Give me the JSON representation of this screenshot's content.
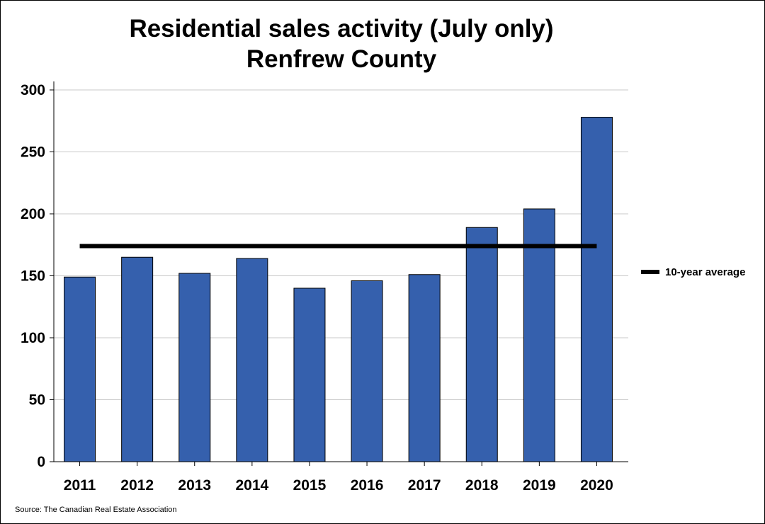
{
  "chart_data": {
    "type": "bar",
    "title": [
      "Residential sales activity (July only)",
      "Renfrew County"
    ],
    "categories": [
      "2011",
      "2012",
      "2013",
      "2014",
      "2015",
      "2016",
      "2017",
      "2018",
      "2019",
      "2020"
    ],
    "values": [
      149,
      165,
      152,
      164,
      140,
      146,
      151,
      189,
      204,
      278
    ],
    "average": {
      "label": "10-year average",
      "value": 174
    },
    "ylim": [
      0,
      300
    ],
    "yticks": [
      0,
      50,
      100,
      150,
      200,
      250,
      300
    ],
    "xlabel": "",
    "ylabel": "",
    "grid": true,
    "legend_placement": "right",
    "colors": {
      "bar": "#3560ad",
      "average": "#000000"
    },
    "source": "Source: The Canadian Real Estate Association"
  }
}
